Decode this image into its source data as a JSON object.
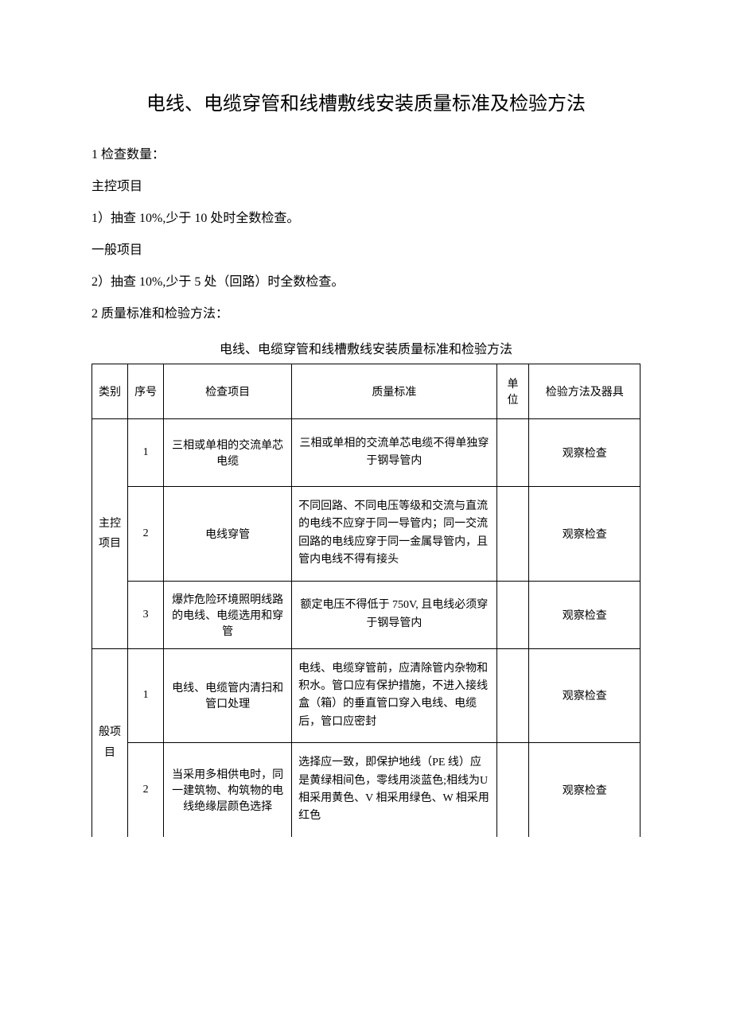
{
  "title": "电线、电缆穿管和线槽敷线安装质量标准及检验方法",
  "intro": {
    "line1": "1 检查数量：",
    "line2": "主控项目",
    "line3": "1）抽查 10%,少于 10 处时全数检查。",
    "line4": "一般项目",
    "line5": "2）抽查 10%,少于 5 处（回路）时全数检查。",
    "line6": "2 质量标准和检验方法："
  },
  "table_caption": "电线、电缆穿管和线槽敷线安装质量标准和检验方法",
  "headers": {
    "category": "类别",
    "number": "序号",
    "item": "检查项目",
    "standard": "质量标准",
    "unit": "单位",
    "method": "检验方法及器具"
  },
  "categories": {
    "main": "主控项目",
    "general": "般项目"
  },
  "rows": [
    {
      "num": "1",
      "item": "三相或单相的交流单芯电缆",
      "standard": "三相或单相的交流单芯电缆不得单独穿于钢导管内",
      "standard_align": "center",
      "unit": "",
      "method": "观察检查"
    },
    {
      "num": "2",
      "item": "电线穿管",
      "standard": "不同回路、不同电压等级和交流与直流的电线不应穿于同一导管内；同一交流回路的电线应穿于同一金属导管内，且管内电线不得有接头",
      "standard_align": "left",
      "unit": "",
      "method": "观察检查"
    },
    {
      "num": "3",
      "item": "爆炸危险环境照明线路的电线、电缆选用和穿管",
      "standard": "额定电压不得低于 750V, 且电线必须穿于钢导管内",
      "standard_align": "center",
      "unit": "",
      "method": "观察检查"
    },
    {
      "num": "1",
      "item": "电线、电缆管内清扫和管口处理",
      "standard": "电线、电缆穿管前，应清除管内杂物和积水。管口应有保护措施，不进入接线盒（箱）的垂直管口穿入电线、电缆后，管口应密封",
      "standard_align": "left",
      "unit": "",
      "method": "观察检查"
    },
    {
      "num": "2",
      "item": "当采用多相供电时，同一建筑物、构筑物的电线绝缘层颜色选择",
      "standard": "选择应一致，即保护地线（PE 线）应是黄绿相间色，零线用淡蓝色;相线为U 相采用黄色、V 相采用绿色、W 相采用红色",
      "standard_align": "left",
      "unit": "",
      "method": "观察检查"
    }
  ]
}
